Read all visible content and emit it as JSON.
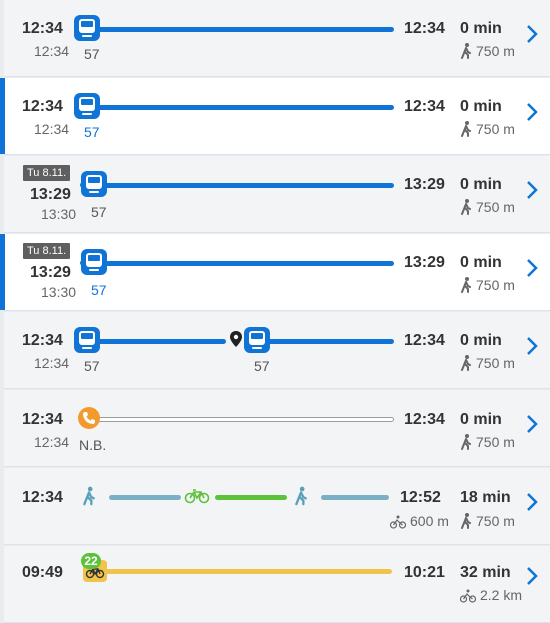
{
  "rows": [
    {
      "dep": "12:34",
      "dep_sched": "12:34",
      "line": "57",
      "arr": "12:34",
      "duration": "0 min",
      "walk": "750 m"
    },
    {
      "dep": "12:34",
      "dep_sched": "12:34",
      "line": "57",
      "arr": "12:34",
      "duration": "0 min",
      "walk": "750 m"
    },
    {
      "date": "Tu 8.11.",
      "dep": "13:29",
      "dep_sched": "13:30",
      "line": "57",
      "arr": "13:29",
      "duration": "0 min",
      "walk": "750 m"
    },
    {
      "date": "Tu 8.11.",
      "dep": "13:29",
      "dep_sched": "13:30",
      "line": "57",
      "arr": "13:29",
      "duration": "0 min",
      "walk": "750 m"
    },
    {
      "dep": "12:34",
      "dep_sched": "12:34",
      "line1": "57",
      "line2": "57",
      "arr": "12:34",
      "duration": "0 min",
      "walk": "750 m"
    },
    {
      "dep": "12:34",
      "dep_sched": "12:34",
      "line": "N.B.",
      "arr": "12:34",
      "duration": "0 min",
      "walk": "750 m"
    },
    {
      "dep": "12:34",
      "arr": "12:52",
      "duration": "18 min",
      "bike": "600 m",
      "walk": "750 m"
    },
    {
      "dep": "09:49",
      "arr": "10:21",
      "duration": "32 min",
      "bike": "2.2 km",
      "badge": "22"
    }
  ],
  "colors": {
    "accent": "#0f74d6",
    "walk_bike": "#7bb0c4",
    "bike_leg": "#5cc23a",
    "citybike": "#f0c34a",
    "call": "#f39a2e"
  },
  "icons": [
    "bus-icon",
    "walk-icon",
    "bicycle-icon",
    "location-pin-icon",
    "phone-icon",
    "citybike-icon",
    "chevron-right-icon"
  ]
}
